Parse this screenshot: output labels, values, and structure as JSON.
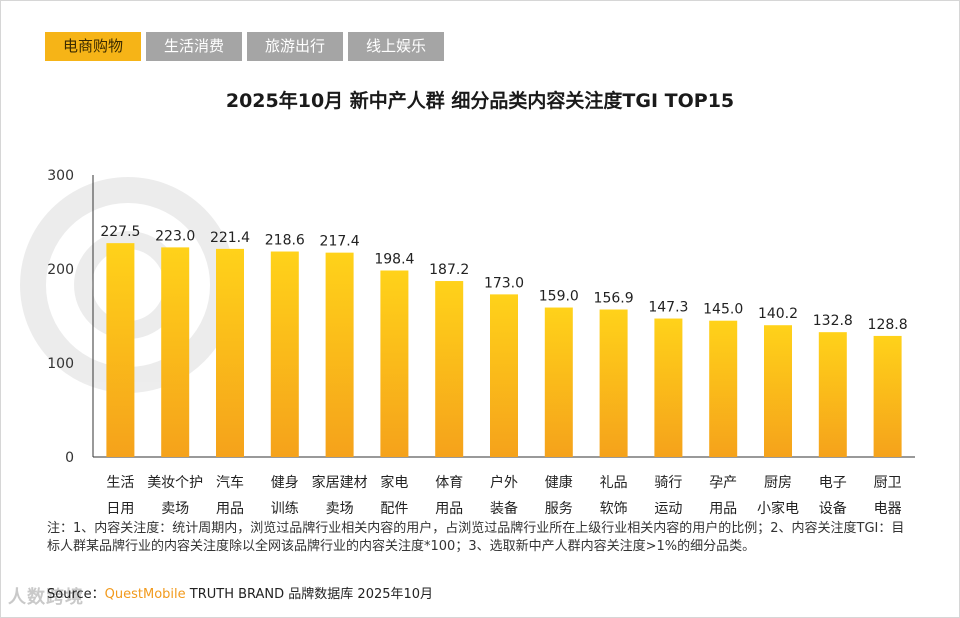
{
  "tabs": [
    {
      "label": "电商购物",
      "active": true
    },
    {
      "label": "生活消费",
      "active": false
    },
    {
      "label": "旅游出行",
      "active": false
    },
    {
      "label": "线上娱乐",
      "active": false
    }
  ],
  "watermark": "人数跨境",
  "chart_data": {
    "type": "bar",
    "title": "2025年10月 新中产人群 细分品类内容关注度TGI TOP15",
    "xlabel": "",
    "ylabel": "",
    "ylim": [
      0,
      300
    ],
    "yticks": [
      0,
      100,
      200,
      300
    ],
    "categories": [
      [
        "生活",
        "日用"
      ],
      [
        "美妆个护",
        "卖场"
      ],
      [
        "汽车",
        "用品"
      ],
      [
        "健身",
        "训练"
      ],
      [
        "家居建材",
        "卖场"
      ],
      [
        "家电",
        "配件"
      ],
      [
        "体育",
        "用品"
      ],
      [
        "户外",
        "装备"
      ],
      [
        "健康",
        "服务"
      ],
      [
        "礼品",
        "软饰"
      ],
      [
        "骑行",
        "运动"
      ],
      [
        "孕产",
        "用品"
      ],
      [
        "厨房",
        "小家电"
      ],
      [
        "电子",
        "设备"
      ],
      [
        "厨卫",
        "电器"
      ]
    ],
    "values": [
      227.5,
      223.0,
      221.4,
      218.6,
      217.4,
      198.4,
      187.2,
      173.0,
      159.0,
      156.9,
      147.3,
      145.0,
      140.2,
      132.8,
      128.8
    ],
    "value_labels": [
      "227.5",
      "223.0",
      "221.4",
      "218.6",
      "217.4",
      "198.4",
      "187.2",
      "173.0",
      "159.0",
      "156.9",
      "147.3",
      "145.0",
      "140.2",
      "132.8",
      "128.8"
    ],
    "colors": {
      "bar_top": "#ffd21a",
      "bar_bottom": "#f5a21b",
      "axis": "#333333"
    }
  },
  "note": "注：1、内容关注度：统计周期内，浏览过品牌行业相关内容的用户，占浏览过品牌行业所在上级行业相关内容的用户的比例；2、内容关注度TGI：目标人群某品牌行业的内容关注度除以全网该品牌行业的内容关注度*100；3、选取新中产人群内容关注度>1%的细分品类。",
  "source": {
    "prefix": "Source：",
    "brand": "QuestMobile",
    "suffix": " TRUTH BRAND 品牌数据库 2025年10月"
  }
}
